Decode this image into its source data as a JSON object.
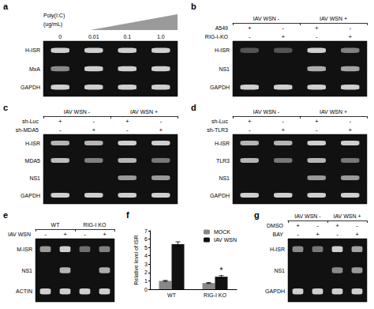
{
  "chart_data": [
    {
      "type": "gel",
      "title": "a",
      "color": "#111111",
      "categories": [
        "H-ISR",
        "MxA",
        "GAPDH"
      ],
      "lanes": [
        "0",
        "0.01",
        "0.1",
        "1.0"
      ],
      "annotations": [
        "Poly(I:C)",
        "(ug/mL)"
      ],
      "bands": [
        [
          1,
          1,
          1,
          1
        ],
        [
          0.6,
          1,
          1,
          1
        ],
        [
          1,
          1,
          1,
          1
        ]
      ]
    },
    {
      "type": "gel",
      "title": "b",
      "color": "#111111",
      "categories": [
        "H-ISR",
        "NS1",
        "GAPDH"
      ],
      "headers": [
        "IAV WSN -",
        "IAV WSN +"
      ],
      "rows": [
        {
          "label": "A549",
          "signs": [
            "+",
            "-",
            "+",
            "-"
          ]
        },
        {
          "label": "RIG-I-KO",
          "signs": [
            "-",
            "+",
            "-",
            "+"
          ]
        }
      ],
      "bands": [
        [
          0.3,
          0.3,
          1.0,
          0.55
        ],
        [
          0,
          0,
          0.8,
          0.75
        ],
        [
          1,
          1,
          1,
          1
        ]
      ]
    },
    {
      "type": "gel",
      "title": "c",
      "color": "#111111",
      "categories": [
        "H-ISR",
        "MDA5",
        "NS1",
        "GAPDH"
      ],
      "headers": [
        "IAV WSN -",
        "IAV WSN +"
      ],
      "rows": [
        {
          "label": "sh-Luc",
          "signs": [
            "+",
            "-",
            "+",
            "-"
          ]
        },
        {
          "label": "sh-MDA5",
          "signs": [
            "-",
            "+",
            "-",
            "+"
          ]
        }
      ],
      "bands": [
        [
          0.85,
          0.85,
          1.0,
          1.0
        ],
        [
          0.9,
          0.55,
          0.85,
          0.5
        ],
        [
          0,
          0,
          0.7,
          0.7
        ],
        [
          1,
          1,
          1,
          1
        ]
      ]
    },
    {
      "type": "gel",
      "title": "d",
      "color": "#111111",
      "categories": [
        "H-ISR",
        "TLR3",
        "NS1",
        "GAPDH"
      ],
      "headers": [
        "IAV WSN -",
        "IAV WSN +"
      ],
      "rows": [
        {
          "label": "sh-Luc",
          "signs": [
            "+",
            "-",
            "+",
            "-"
          ]
        },
        {
          "label": "sh-TLR3",
          "signs": [
            "-",
            "+",
            "-",
            "+"
          ]
        }
      ],
      "bands": [
        [
          0.85,
          0.85,
          1.0,
          1.0
        ],
        [
          0.85,
          0.5,
          0.85,
          0.5
        ],
        [
          0,
          0,
          0.7,
          0.7
        ],
        [
          1,
          1,
          1,
          1
        ]
      ]
    },
    {
      "type": "gel",
      "title": "e",
      "color": "#111111",
      "categories": [
        "M-ISR",
        "NS1",
        "ACTIN"
      ],
      "headers": [
        "WT",
        "RIG-I KO"
      ],
      "rows": [
        {
          "label": "IAV WSN",
          "signs": [
            "-",
            "+",
            "-",
            "+"
          ]
        }
      ],
      "bands": [
        [
          0.7,
          1.0,
          0.45,
          0.55
        ],
        [
          0,
          0.85,
          0,
          0.8
        ],
        [
          1,
          1,
          1,
          1
        ]
      ]
    },
    {
      "type": "bar",
      "title": "f",
      "ylabel": "Relative level of ISR",
      "categories": [
        "WT",
        "RIG-I KO"
      ],
      "series": [
        {
          "name": "MOCK",
          "color": "#888888",
          "values": [
            1.0,
            0.75
          ],
          "errors": [
            0.06,
            0.06
          ]
        },
        {
          "name": "IAV WSN",
          "color": "#111111",
          "values": [
            5.4,
            1.5
          ],
          "errors": [
            0.28,
            0.14
          ]
        }
      ],
      "ylim": [
        0,
        7
      ],
      "yticks": [
        0,
        1,
        2,
        3,
        4,
        5,
        6,
        7
      ],
      "grid": false,
      "legend": "upper right",
      "annotations": [
        {
          "text": "*",
          "category": "RIG-I KO",
          "series": "IAV WSN"
        }
      ]
    },
    {
      "type": "gel",
      "title": "g",
      "color": "#111111",
      "categories": [
        "H-ISR",
        "NS1",
        "GAPDH"
      ],
      "headers": [
        "IAV WSN -",
        "IAV WSN +"
      ],
      "rows": [
        {
          "label": "DMSO",
          "signs": [
            "+",
            "-",
            "+",
            "-"
          ]
        },
        {
          "label": "BAY",
          "signs": [
            "-",
            "+",
            "-",
            "+"
          ]
        }
      ],
      "bands": [
        [
          0.6,
          0.5,
          1.0,
          0.75
        ],
        [
          0,
          0,
          0.6,
          0.7
        ],
        [
          1,
          1,
          1,
          1
        ]
      ]
    }
  ]
}
